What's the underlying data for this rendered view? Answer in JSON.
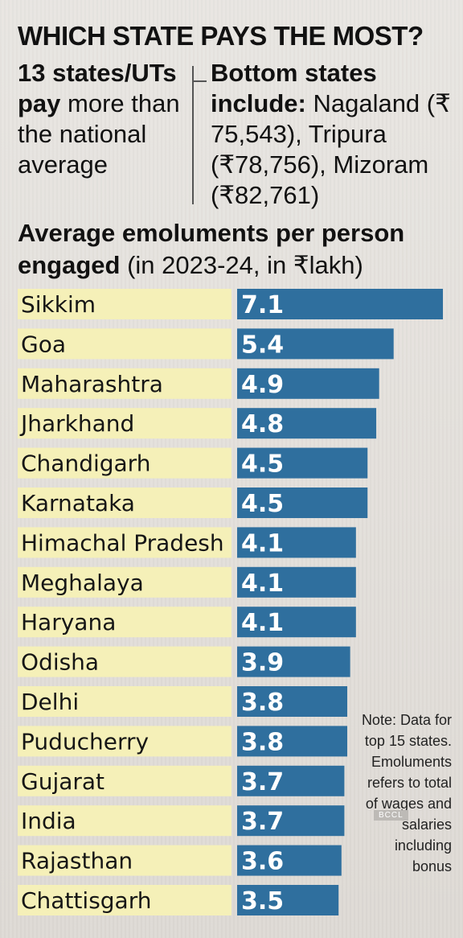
{
  "title": "WHICH STATE PAYS THE MOST?",
  "intro_left": {
    "bold": "13 states/UTs",
    "bold2": "pay",
    "rest": " more than the national average"
  },
  "intro_right": {
    "bold": "Bottom states include:",
    "rest": " Nagaland (₹ 75,543), Tripura (₹78,756), Mizoram (₹82,761)"
  },
  "subtitle": {
    "bold": "Average emoluments per person engaged",
    "rest": " (in 2023-24, in ₹lakh)"
  },
  "note": "Note: Data for top 15 states. Emoluments refers to total of wages and salaries including bonus",
  "watermark": "BCCL",
  "colors": {
    "label_band": "#f5f0b8",
    "bar": "#2f6f9e"
  },
  "chart_data": {
    "type": "bar",
    "orientation": "horizontal",
    "title": "Average emoluments per person engaged (in 2023-24, in ₹lakh)",
    "categories": [
      "Sikkim",
      "Goa",
      "Maharashtra",
      "Jharkhand",
      "Chandigarh",
      "Karnataka",
      "Himachal Pradesh",
      "Meghalaya",
      "Haryana",
      "Odisha",
      "Delhi",
      "Puducherry",
      "Gujarat",
      "India",
      "Rajasthan",
      "Chattisgarh"
    ],
    "values": [
      7.1,
      5.4,
      4.9,
      4.8,
      4.5,
      4.5,
      4.1,
      4.1,
      4.1,
      3.9,
      3.8,
      3.8,
      3.7,
      3.7,
      3.6,
      3.5
    ],
    "value_labels": [
      "7.1",
      "5.4",
      "4.9",
      "4.8",
      "4.5",
      "4.5",
      "4.1",
      "4.1",
      "4.1",
      "3.9",
      "3.8",
      "3.8",
      "3.7",
      "3.7",
      "3.6",
      "3.5"
    ]
  }
}
